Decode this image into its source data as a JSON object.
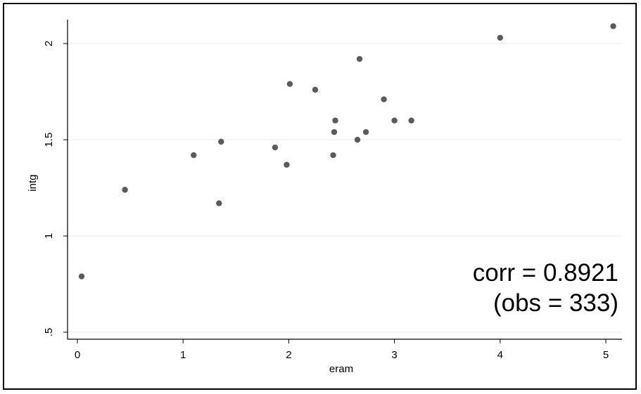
{
  "chart_data": {
    "type": "scatter",
    "title": "",
    "xlabel": "eram",
    "ylabel": "intg",
    "xlim": [
      0,
      5
    ],
    "ylim": [
      0.5,
      2
    ],
    "xticks": [
      "0",
      "1",
      "2",
      "3",
      "4",
      "5"
    ],
    "yticks": [
      "2",
      "1.5",
      "1",
      ".5"
    ],
    "grid": true,
    "points": [
      {
        "x": 0.04,
        "y": 0.79
      },
      {
        "x": 0.45,
        "y": 1.24
      },
      {
        "x": 1.1,
        "y": 1.42
      },
      {
        "x": 1.34,
        "y": 1.17
      },
      {
        "x": 1.36,
        "y": 1.49
      },
      {
        "x": 1.87,
        "y": 1.46
      },
      {
        "x": 1.98,
        "y": 1.37
      },
      {
        "x": 2.01,
        "y": 1.79
      },
      {
        "x": 2.25,
        "y": 1.76
      },
      {
        "x": 2.42,
        "y": 1.42
      },
      {
        "x": 2.43,
        "y": 1.54
      },
      {
        "x": 2.44,
        "y": 1.6
      },
      {
        "x": 2.65,
        "y": 1.5
      },
      {
        "x": 2.67,
        "y": 1.92
      },
      {
        "x": 2.73,
        "y": 1.54
      },
      {
        "x": 2.9,
        "y": 1.71
      },
      {
        "x": 3.0,
        "y": 1.6
      },
      {
        "x": 3.16,
        "y": 1.6
      },
      {
        "x": 4.0,
        "y": 2.03
      },
      {
        "x": 5.07,
        "y": 2.09
      }
    ],
    "annotation": {
      "line1": "corr = 0.8921",
      "line2": "(obs = 333)"
    },
    "colors": {
      "marker": "#5b5b5b",
      "grid": "#eaeaea",
      "axis": "#000000"
    }
  }
}
